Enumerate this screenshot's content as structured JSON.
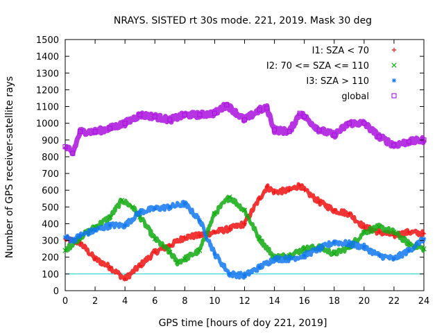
{
  "chart_data": {
    "type": "scatter",
    "title": "NRAYS. SISTED rt 30s mode. 221, 2019. Mask 30 deg",
    "xlabel": "GPS time [hours of doy 221, 2019]",
    "ylabel": "Number of GPS receiver-satellite rays",
    "xlim": [
      0,
      24
    ],
    "ylim": [
      0,
      1500
    ],
    "xticks": [
      0,
      2,
      4,
      6,
      8,
      10,
      12,
      14,
      16,
      18,
      20,
      22,
      24
    ],
    "yticks": [
      0,
      100,
      200,
      300,
      400,
      500,
      600,
      700,
      800,
      900,
      1000,
      1100,
      1200,
      1300,
      1400,
      1500
    ],
    "reference_line": {
      "y": 100,
      "color": "#00cccc"
    },
    "legend_position": "top-right",
    "series": [
      {
        "name": "I1: SZA < 70",
        "marker": "+",
        "color": "#ee1111",
        "points": [
          [
            0,
            310
          ],
          [
            1,
            285
          ],
          [
            2,
            190
          ],
          [
            3,
            140
          ],
          [
            4,
            70
          ],
          [
            5,
            150
          ],
          [
            6,
            230
          ],
          [
            7,
            270
          ],
          [
            8,
            320
          ],
          [
            9,
            330
          ],
          [
            10,
            350
          ],
          [
            11,
            370
          ],
          [
            12,
            400
          ],
          [
            13,
            550
          ],
          [
            13.5,
            620
          ],
          [
            14,
            590
          ],
          [
            15,
            600
          ],
          [
            15.7,
            630
          ],
          [
            16,
            600
          ],
          [
            17,
            530
          ],
          [
            18,
            480
          ],
          [
            19,
            460
          ],
          [
            20,
            380
          ],
          [
            21,
            350
          ],
          [
            22,
            330
          ],
          [
            23,
            350
          ],
          [
            24,
            340
          ]
        ]
      },
      {
        "name": "I2: 70 <= SZA <= 110",
        "marker": "x",
        "color": "#11aa11",
        "points": [
          [
            0,
            240
          ],
          [
            1,
            320
          ],
          [
            2,
            380
          ],
          [
            3,
            440
          ],
          [
            3.8,
            540
          ],
          [
            4.5,
            500
          ],
          [
            5,
            440
          ],
          [
            6,
            310
          ],
          [
            7,
            230
          ],
          [
            7.5,
            170
          ],
          [
            8,
            190
          ],
          [
            9,
            240
          ],
          [
            10,
            460
          ],
          [
            11,
            560
          ],
          [
            12,
            480
          ],
          [
            13,
            310
          ],
          [
            14,
            200
          ],
          [
            15,
            210
          ],
          [
            16,
            250
          ],
          [
            17,
            260
          ],
          [
            18,
            220
          ],
          [
            19,
            260
          ],
          [
            20,
            350
          ],
          [
            21,
            380
          ],
          [
            22,
            350
          ],
          [
            23,
            280
          ],
          [
            24,
            250
          ]
        ]
      },
      {
        "name": "I3: SZA > 110",
        "marker": "*",
        "color": "#1177ee",
        "points": [
          [
            0,
            320
          ],
          [
            0.5,
            300
          ],
          [
            1,
            330
          ],
          [
            2,
            360
          ],
          [
            3,
            390
          ],
          [
            4,
            390
          ],
          [
            5,
            470
          ],
          [
            6,
            490
          ],
          [
            7,
            500
          ],
          [
            8,
            520
          ],
          [
            9,
            420
          ],
          [
            10,
            220
          ],
          [
            11,
            100
          ],
          [
            12,
            90
          ],
          [
            13,
            140
          ],
          [
            14,
            190
          ],
          [
            15,
            190
          ],
          [
            16,
            210
          ],
          [
            17,
            250
          ],
          [
            18,
            290
          ],
          [
            19,
            280
          ],
          [
            20,
            260
          ],
          [
            21,
            210
          ],
          [
            22,
            190
          ],
          [
            23,
            240
          ],
          [
            24,
            310
          ]
        ]
      },
      {
        "name": "global",
        "marker": "square",
        "color": "#aa11dd",
        "points": [
          [
            0,
            860
          ],
          [
            0.5,
            820
          ],
          [
            1,
            950
          ],
          [
            2,
            950
          ],
          [
            3,
            970
          ],
          [
            4,
            1000
          ],
          [
            5,
            1050
          ],
          [
            6,
            1040
          ],
          [
            7,
            1020
          ],
          [
            8,
            1050
          ],
          [
            9,
            1050
          ],
          [
            10,
            1060
          ],
          [
            10.8,
            1110
          ],
          [
            12,
            1020
          ],
          [
            13,
            1080
          ],
          [
            13.5,
            1090
          ],
          [
            14,
            960
          ],
          [
            15,
            950
          ],
          [
            15.7,
            1060
          ],
          [
            16,
            1040
          ],
          [
            17,
            960
          ],
          [
            18,
            930
          ],
          [
            19,
            1000
          ],
          [
            20,
            1000
          ],
          [
            21,
            920
          ],
          [
            22,
            870
          ],
          [
            23,
            890
          ],
          [
            24,
            900
          ]
        ]
      }
    ]
  }
}
